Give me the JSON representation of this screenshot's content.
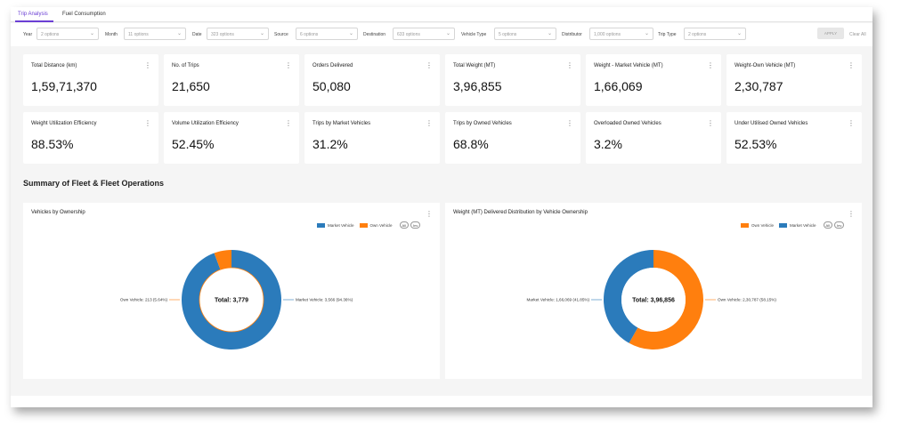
{
  "tabs": [
    {
      "label": "Trip Analysis",
      "active": true
    },
    {
      "label": "Fuel Consumption",
      "active": false
    }
  ],
  "filters": [
    {
      "label": "Year",
      "value": "2 options"
    },
    {
      "label": "Month",
      "value": "11 options"
    },
    {
      "label": "Date",
      "value": "323 options"
    },
    {
      "label": "Source",
      "value": "6 options"
    },
    {
      "label": "Destination",
      "value": "633 options"
    },
    {
      "label": "Vehicle Type",
      "value": "5 options"
    },
    {
      "label": "Distributor",
      "value": "1,000 options"
    },
    {
      "label": "Trip Type",
      "value": "2 options"
    }
  ],
  "actions": {
    "apply": "APPLY",
    "clear": "Clear All"
  },
  "kpi_row1": [
    {
      "label": "Total Distance (km)",
      "value": "1,59,71,370"
    },
    {
      "label": "No. of Trips",
      "value": "21,650"
    },
    {
      "label": "Orders Delivered",
      "value": "50,080"
    },
    {
      "label": "Total Weight (MT)",
      "value": "3,96,855"
    },
    {
      "label": "Weight - Market Vehicle (MT)",
      "value": "1,66,069"
    },
    {
      "label": "Weight-Own Vehicle (MT)",
      "value": "2,30,787"
    }
  ],
  "kpi_row2": [
    {
      "label": "Weight Utilization Efficiency",
      "value": "88.53%"
    },
    {
      "label": "Volume Utilization Efficiency",
      "value": "52.45%"
    },
    {
      "label": "Trips by Market Vehicles",
      "value": "31.2%"
    },
    {
      "label": "Trips by Owned Vehicles",
      "value": "68.8%"
    },
    {
      "label": "Overloaded Owned Vehicles",
      "value": "3.2%"
    },
    {
      "label": "Under Utilised Owned Vehicles",
      "value": "52.53%"
    }
  ],
  "section_title": "Summary of Fleet & Fleet Operations",
  "colors": {
    "market": "#2b7bbb",
    "own": "#ff7f0e",
    "accent": "#6b3fd4"
  },
  "chart_data": [
    {
      "type": "pie",
      "title": "Vehicles by Ownership",
      "legend": [
        "Market Vehicle",
        "Own Vehicle"
      ],
      "pills": [
        "All",
        "Inv"
      ],
      "center_label": "Total: 3,779",
      "slices": [
        {
          "name": "Market Vehicle",
          "value": 3566,
          "label": "Market Vehicle: 3,566 (94.36%)"
        },
        {
          "name": "Own Vehicle",
          "value": 213,
          "label": "Own Vehicle: 213 (5.64%)"
        }
      ]
    },
    {
      "type": "pie",
      "title": "Weight (MT) Delivered Distribution by Vehicle Ownership",
      "legend": [
        "Own Vehicle",
        "Market Vehicle"
      ],
      "pills": [
        "All",
        "Inv"
      ],
      "center_label": "Total: 3,96,856",
      "slices": [
        {
          "name": "Own Vehicle",
          "value": 230787,
          "label": "Own Vehicle: 2,30,787 (58.15%)"
        },
        {
          "name": "Market Vehicle",
          "value": 166069,
          "label": "Market Vehicle: 1,66,069 (41.85%)"
        }
      ]
    }
  ]
}
